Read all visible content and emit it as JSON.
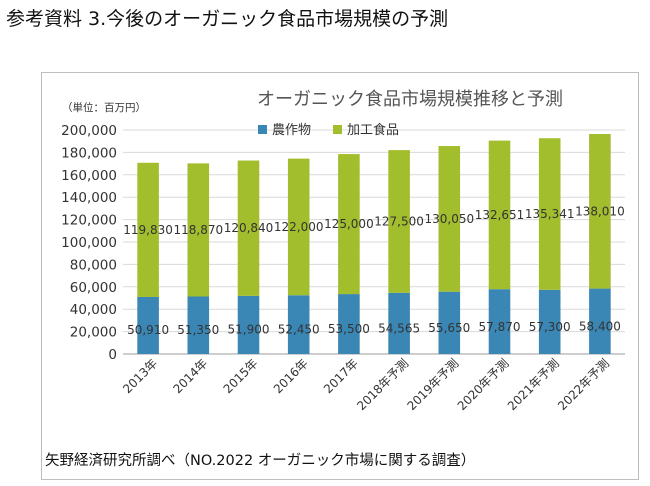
{
  "heading": "参考資料 3.今後のオーガニック食品市場規模の予測",
  "source": "矢野経済研究所調べ（NO.2022 オーガニック市場に関する調査）",
  "chart_data": {
    "type": "bar",
    "stacked": true,
    "title": "オーガニック食品市場規模推移と予測",
    "unit_label": "（単位：百万円）",
    "xlabel": "",
    "ylabel": "",
    "ylim": [
      0,
      200000
    ],
    "yticks": [
      "0",
      "20,000",
      "40,000",
      "60,000",
      "80,000",
      "100,000",
      "120,000",
      "140,000",
      "160,000",
      "180,000",
      "200,000"
    ],
    "grid": true,
    "legend_position": "top",
    "categories": [
      "2013年",
      "2014年",
      "2015年",
      "2016年",
      "2017年",
      "2018年予測",
      "2019年予測",
      "2020年予測",
      "2021年予測",
      "2022年予測"
    ],
    "series": [
      {
        "name": "農作物",
        "color": "#3a86b5",
        "values": [
          50910,
          51350,
          51900,
          52450,
          53500,
          54565,
          55650,
          57870,
          57300,
          58400
        ],
        "labels": [
          "50,910",
          "51,350",
          "51,900",
          "52,450",
          "53,500",
          "54,565",
          "55,650",
          "57,870",
          "57,300",
          "58,400"
        ]
      },
      {
        "name": "加工食品",
        "color": "#a2be2d",
        "values": [
          119830,
          118870,
          120840,
          122000,
          125000,
          127500,
          130050,
          132651,
          135341,
          138010
        ],
        "labels": [
          "119,830",
          "118,870",
          "120,840",
          "122,000",
          "125,000",
          "127,500",
          "130,050",
          "132,651",
          "135,341",
          "138,010"
        ]
      }
    ]
  }
}
